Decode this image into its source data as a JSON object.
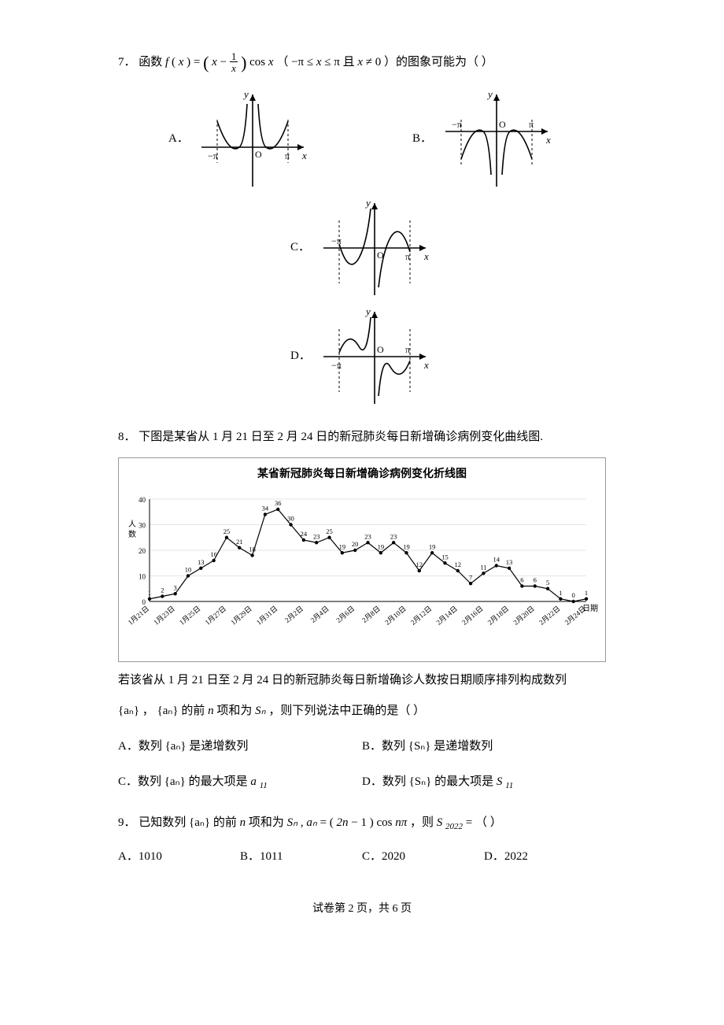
{
  "q7": {
    "num": "7．",
    "text_pre": "函数 ",
    "formula_f": "f",
    "formula_x_open": "(",
    "formula_x": "x",
    "formula_x_close": ")",
    "formula_eq": " = ",
    "formula_paren_open": "(",
    "formula_x2": "x",
    "formula_minus": " − ",
    "frac_num": "1",
    "frac_den": "x",
    "formula_paren_close": ")",
    "formula_cos": "cos ",
    "formula_x3": "x",
    "text_range_open": " （",
    "range_neg_pi": "−π ≤ ",
    "range_x": "x",
    "range_le_pi": " ≤ π",
    "range_and": " 且 ",
    "range_x2": "x",
    "range_neq": " ≠ 0",
    "text_range_close": "）的图象可能为（  ）",
    "optA": "A．",
    "optB": "B．",
    "optC": "C．",
    "optD": "D．",
    "axis_labels": {
      "x": "x",
      "y": "y",
      "pi": "π",
      "neg_pi": "−π",
      "O": "O"
    },
    "stroke": "#000000",
    "stroke_width": 1.6
  },
  "q8": {
    "num": "8．",
    "intro": "下图是某省从 1 月 21 日至 2 月 24 日的新冠肺炎每日新增确诊病例变化曲线图.",
    "chart": {
      "title": "某省新冠肺炎每日新增确诊病例变化折线图",
      "y_label": "人数",
      "x_label": "日期",
      "values": [
        1,
        2,
        3,
        10,
        13,
        16,
        25,
        21,
        18,
        34,
        36,
        30,
        24,
        23,
        25,
        19,
        20,
        23,
        19,
        23,
        19,
        12,
        19,
        15,
        12,
        7,
        11,
        14,
        13,
        6,
        6,
        5,
        1,
        0,
        1
      ],
      "x_ticks": [
        "1月21日",
        "1月23日",
        "1月25日",
        "1月27日",
        "1月29日",
        "1月31日",
        "2月2日",
        "2月4日",
        "2月6日",
        "2月8日",
        "2月10日",
        "2月12日",
        "2月14日",
        "2月16日",
        "2月18日",
        "2月20日",
        "2月22日",
        "2月24日"
      ],
      "y_ticks": [
        0,
        10,
        20,
        30,
        40
      ],
      "line_color": "#000000",
      "marker_color": "#000000",
      "background_color": "#ffffff",
      "grid_color": "#cccccc",
      "marker_size": 2.2,
      "line_width": 1.2,
      "title_fontsize": 14,
      "label_fontsize": 10,
      "tick_fontsize": 9
    },
    "text2_pre": "若该省从 1 月 21 日至 2 月 24 日的新冠肺炎每日新增确诊人数按日期顺序排列构成数列",
    "seq1": "{aₙ}",
    "comma": "，",
    "seq2": "{aₙ}",
    "text3_mid": "的前 ",
    "text3_n": "n",
    "text3_post": " 项和为 ",
    "Sn": "Sₙ",
    "text3_end": "，则下列说法中正确的是（    ）",
    "opts": {
      "A_pre": "A．数列",
      "A_seq": "{aₙ}",
      "A_post": "是递增数列",
      "B_pre": "B．数列",
      "B_seq": "{Sₙ}",
      "B_post": "是递增数列",
      "C_pre": "C．数列",
      "C_seq": "{aₙ}",
      "C_mid": "的最大项是 ",
      "C_a": "a",
      "C_sub": "11",
      "D_pre": "D．数列",
      "D_seq": "{Sₙ}",
      "D_mid": "的最大项是 ",
      "D_S": "S",
      "D_sub": "11"
    }
  },
  "q9": {
    "num": "9．",
    "text_pre": "已知数列",
    "seq": "{aₙ}",
    "text_mid1": "的前 ",
    "text_n": "n",
    "text_mid2": " 项和为 ",
    "Sn": "Sₙ",
    "text_comma": ", ",
    "an": "aₙ",
    "eq": " = ",
    "paren_open": "(",
    "two_n": "2n",
    "minus_one": " − 1",
    "paren_close": ")",
    "cos": "cos",
    "n_pi": "nπ",
    "text_then": " ，则 ",
    "S": "S",
    "sub_2022": "2022",
    "eq2": " = （    ）",
    "opts": {
      "A": "A．1010",
      "B": "B．1011",
      "C": "C．2020",
      "D": "D．2022"
    }
  },
  "footer": {
    "text": "试卷第 2 页，共 6 页"
  }
}
